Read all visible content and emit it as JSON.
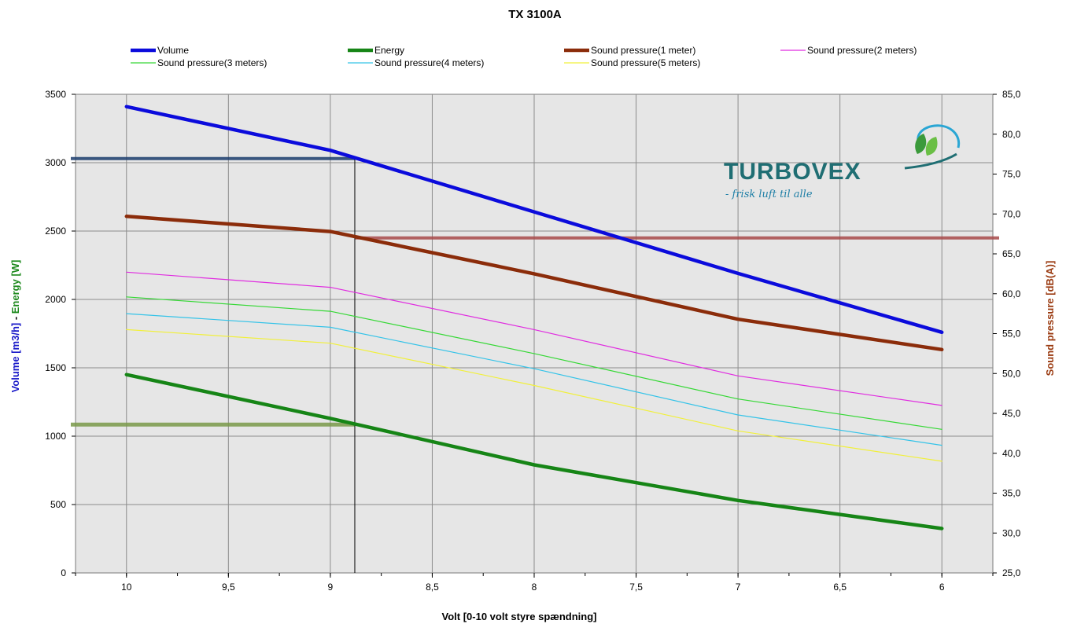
{
  "chart_data": {
    "type": "line",
    "title": "TX 3100A",
    "xlabel": "Volt [0-10 volt styre spændning]",
    "ylabel_left": {
      "volume_part": "Volume [m3/h]",
      "separator": " - ",
      "energy_part": "Energy [W]"
    },
    "ylabel_right": "Sound pressure [dB(A)]",
    "x_ticks": [
      "10",
      "9,5",
      "9",
      "8,5",
      "8",
      "7,5",
      "7",
      "6,5",
      "6"
    ],
    "x": [
      10,
      9,
      8,
      7,
      6
    ],
    "xlim": [
      10.25,
      5.75
    ],
    "ylim_left": [
      0,
      3500
    ],
    "ylim_right": [
      25,
      85
    ],
    "y_ticks_left": [
      "0",
      "500",
      "1000",
      "1500",
      "2000",
      "2500",
      "3000",
      "3500"
    ],
    "y_ticks_right": [
      "25,0",
      "30,0",
      "35,0",
      "40,0",
      "45,0",
      "50,0",
      "55,0",
      "60,0",
      "65,0",
      "70,0",
      "75,0",
      "80,0",
      "85,0"
    ],
    "grid": true,
    "legend_position": "top",
    "series": [
      {
        "name": "Volume",
        "axis": "left",
        "color": "#0b0bdc",
        "width": "thick",
        "values": [
          3410,
          3090,
          2640,
          2190,
          1760
        ]
      },
      {
        "name": "Energy",
        "axis": "left",
        "color": "#168516",
        "width": "thick",
        "values": [
          1450,
          1130,
          790,
          530,
          325
        ]
      },
      {
        "name": "Sound pressure(1 meter)",
        "axis": "right",
        "color": "#8b2c0a",
        "width": "thick",
        "values": [
          69.7,
          67.8,
          62.5,
          56.8,
          53.0
        ]
      },
      {
        "name": "Sound pressure(2 meters)",
        "axis": "right",
        "color": "#e02ce0",
        "width": "thin",
        "values": [
          62.7,
          60.8,
          55.5,
          49.7,
          46.0
        ]
      },
      {
        "name": "Sound pressure(3 meters)",
        "axis": "right",
        "color": "#36d836",
        "width": "thin",
        "values": [
          59.6,
          57.8,
          52.5,
          46.8,
          43.0
        ]
      },
      {
        "name": "Sound pressure(4 meters)",
        "axis": "right",
        "color": "#34c3e8",
        "width": "thin",
        "values": [
          57.5,
          55.8,
          50.6,
          44.8,
          41.0
        ]
      },
      {
        "name": "Sound pressure(5 meters)",
        "axis": "right",
        "color": "#f1f03a",
        "width": "thin",
        "values": [
          55.5,
          53.8,
          48.5,
          42.8,
          39.0
        ]
      }
    ],
    "annotations": [
      {
        "kind": "operating-point",
        "x": 8.88,
        "volume": 3030,
        "energy": 1085,
        "sound_pressure": 67.0
      }
    ]
  },
  "logo": {
    "name": "TURBOVEX",
    "tagline": "- frisk luft til alle"
  },
  "colors": {
    "plot_bg": "#e6e6e6",
    "grid": "#8c8c8c",
    "volume_axis_title": "#1818c8",
    "energy_axis_title": "#1e8a1e",
    "sound_axis_title": "#9a3a10",
    "logo_teal": "#1f6e73"
  }
}
